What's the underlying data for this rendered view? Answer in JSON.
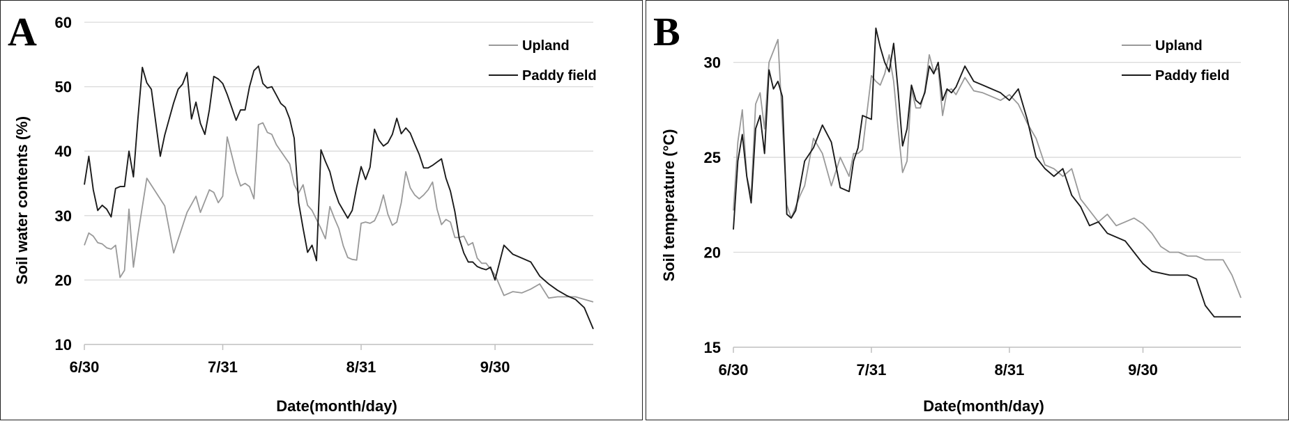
{
  "chart_data": [
    {
      "panel_label": "A",
      "type": "line",
      "ylabel": "Soil water contents (%)",
      "xlabel": "Date(month/day)",
      "ylim": [
        10,
        60
      ],
      "yticks": [
        10,
        20,
        30,
        40,
        50,
        60
      ],
      "xlim": [
        "6/30",
        "10/22"
      ],
      "xtick_labels": [
        "6/30",
        "7/31",
        "8/31",
        "9/30"
      ],
      "xtick_dates": [
        "2000-06-30",
        "2000-07-31",
        "2000-08-31",
        "2000-09-30"
      ],
      "grid": true,
      "legend_position": "top-right",
      "colors": {
        "Upland": "#999999",
        "Paddy field": "#1a1a1a"
      },
      "series": [
        {
          "name": "Upland",
          "x": [
            "2000-06-30",
            "2000-07-01",
            "2000-07-02",
            "2000-07-03",
            "2000-07-04",
            "2000-07-05",
            "2000-07-06",
            "2000-07-07",
            "2000-07-08",
            "2000-07-09",
            "2000-07-10",
            "2000-07-11",
            "2000-07-12",
            "2000-07-14",
            "2000-07-18",
            "2000-07-20",
            "2000-07-23",
            "2000-07-25",
            "2000-07-26",
            "2000-07-28",
            "2000-07-29",
            "2000-07-30",
            "2000-07-31",
            "2000-08-01",
            "2000-08-03",
            "2000-08-04",
            "2000-08-05",
            "2000-08-06",
            "2000-08-07",
            "2000-08-08",
            "2000-08-09",
            "2000-08-10",
            "2000-08-11",
            "2000-08-12",
            "2000-08-13",
            "2000-08-14",
            "2000-08-15",
            "2000-08-16",
            "2000-08-17",
            "2000-08-18",
            "2000-08-19",
            "2000-08-20",
            "2000-08-21",
            "2000-08-22",
            "2000-08-23",
            "2000-08-24",
            "2000-08-25",
            "2000-08-26",
            "2000-08-27",
            "2000-08-28",
            "2000-08-29",
            "2000-08-30",
            "2000-08-31",
            "2000-09-01",
            "2000-09-02",
            "2000-09-03",
            "2000-09-04",
            "2000-09-05",
            "2000-09-06",
            "2000-09-07",
            "2000-09-08",
            "2000-09-09",
            "2000-09-10",
            "2000-09-11",
            "2000-09-12",
            "2000-09-13",
            "2000-09-14",
            "2000-09-15",
            "2000-09-16",
            "2000-09-17",
            "2000-09-18",
            "2000-09-19",
            "2000-09-20",
            "2000-09-21",
            "2000-09-22",
            "2000-09-23",
            "2000-09-24",
            "2000-09-25",
            "2000-09-26",
            "2000-09-27",
            "2000-09-28",
            "2000-09-30",
            "2000-10-02",
            "2000-10-04",
            "2000-10-06",
            "2000-10-08",
            "2000-10-10",
            "2000-10-12",
            "2000-10-14",
            "2000-10-16",
            "2000-10-18",
            "2000-10-20",
            "2000-10-22"
          ],
          "values": [
            25.4,
            27.3,
            26.8,
            25.8,
            25.6,
            25.0,
            24.8,
            25.4,
            20.4,
            21.5,
            31.0,
            22.0,
            27.0,
            35.8,
            31.5,
            24.2,
            30.5,
            33.0,
            30.5,
            34.0,
            33.6,
            32.0,
            33.0,
            42.2,
            36.7,
            34.6,
            35.0,
            34.5,
            32.6,
            44.1,
            44.4,
            42.9,
            42.6,
            41.0,
            40.0,
            39.0,
            38.0,
            34.8,
            33.5,
            34.8,
            31.6,
            30.8,
            29.4,
            28.0,
            26.4,
            31.4,
            29.6,
            28.0,
            25.3,
            23.5,
            23.2,
            23.1,
            28.8,
            29.0,
            28.8,
            29.2,
            30.7,
            33.2,
            30.2,
            28.5,
            29.0,
            32.0,
            36.8,
            34.3,
            33.2,
            32.6,
            33.2,
            34.0,
            35.2,
            31.0,
            28.6,
            29.4,
            29.0,
            26.6,
            26.6,
            26.8,
            25.4,
            25.8,
            23.4,
            22.6,
            22.6,
            20.8,
            17.6,
            18.2,
            18.0,
            18.6,
            19.4,
            17.2,
            17.4,
            17.4,
            17.4,
            17.0,
            16.6
          ]
        },
        {
          "name": "Paddy field",
          "x": [
            "2000-06-30",
            "2000-07-01",
            "2000-07-02",
            "2000-07-03",
            "2000-07-04",
            "2000-07-05",
            "2000-07-06",
            "2000-07-07",
            "2000-07-08",
            "2000-07-09",
            "2000-07-10",
            "2000-07-11",
            "2000-07-12",
            "2000-07-13",
            "2000-07-14",
            "2000-07-15",
            "2000-07-17",
            "2000-07-18",
            "2000-07-19",
            "2000-07-20",
            "2000-07-21",
            "2000-07-22",
            "2000-07-23",
            "2000-07-24",
            "2000-07-25",
            "2000-07-26",
            "2000-07-27",
            "2000-07-28",
            "2000-07-29",
            "2000-07-30",
            "2000-07-31",
            "2000-08-01",
            "2000-08-02",
            "2000-08-03",
            "2000-08-04",
            "2000-08-05",
            "2000-08-06",
            "2000-08-07",
            "2000-08-08",
            "2000-08-09",
            "2000-08-10",
            "2000-08-11",
            "2000-08-12",
            "2000-08-13",
            "2000-08-14",
            "2000-08-15",
            "2000-08-16",
            "2000-08-17",
            "2000-08-18",
            "2000-08-19",
            "2000-08-20",
            "2000-08-21",
            "2000-08-22",
            "2000-08-23",
            "2000-08-24",
            "2000-08-25",
            "2000-08-26",
            "2000-08-27",
            "2000-08-28",
            "2000-08-29",
            "2000-08-30",
            "2000-08-31",
            "2000-09-01",
            "2000-09-02",
            "2000-09-03",
            "2000-09-04",
            "2000-09-05",
            "2000-09-06",
            "2000-09-07",
            "2000-09-08",
            "2000-09-09",
            "2000-09-10",
            "2000-09-11",
            "2000-09-12",
            "2000-09-13",
            "2000-09-14",
            "2000-09-15",
            "2000-09-16",
            "2000-09-17",
            "2000-09-18",
            "2000-09-19",
            "2000-09-20",
            "2000-09-21",
            "2000-09-22",
            "2000-09-23",
            "2000-09-24",
            "2000-09-25",
            "2000-09-26",
            "2000-09-27",
            "2000-09-28",
            "2000-09-29",
            "2000-09-30",
            "2000-10-02",
            "2000-10-04",
            "2000-10-06",
            "2000-10-08",
            "2000-10-10",
            "2000-10-12",
            "2000-10-14",
            "2000-10-16",
            "2000-10-18",
            "2000-10-20",
            "2000-10-22"
          ],
          "values": [
            34.8,
            39.2,
            34.0,
            30.8,
            31.6,
            31.0,
            29.8,
            34.2,
            34.5,
            34.5,
            40.0,
            36.0,
            45.0,
            53.0,
            50.6,
            49.6,
            39.2,
            42.5,
            45.0,
            47.5,
            49.6,
            50.4,
            52.2,
            45.0,
            47.6,
            44.3,
            42.6,
            46.4,
            51.6,
            51.2,
            50.5,
            48.8,
            46.8,
            44.8,
            46.4,
            46.4,
            50.0,
            52.5,
            53.2,
            50.5,
            49.8,
            50.0,
            48.7,
            47.4,
            46.8,
            45.0,
            42.0,
            32.0,
            28.0,
            24.3,
            25.4,
            23.0,
            40.2,
            38.4,
            36.8,
            34.0,
            32.0,
            30.8,
            29.6,
            30.8,
            34.4,
            37.6,
            35.6,
            37.5,
            43.4,
            41.7,
            40.8,
            41.3,
            42.6,
            45.1,
            42.7,
            43.6,
            42.8,
            41.1,
            39.5,
            37.4,
            37.4,
            37.8,
            38.3,
            38.8,
            35.8,
            33.8,
            30.6,
            26.4,
            24.2,
            22.8,
            22.8,
            22.1,
            21.8,
            21.6,
            22.0,
            20.0,
            25.4,
            24.0,
            23.4,
            22.8,
            20.6,
            19.4,
            18.4,
            17.6,
            17.0,
            15.7,
            12.4
          ]
        }
      ]
    },
    {
      "panel_label": "B",
      "type": "line",
      "ylabel": "Soil temperature (°C)",
      "xlabel": "Date(month/day)",
      "ylim": [
        15,
        32
      ],
      "yticks": [
        15,
        20,
        25,
        30
      ],
      "xlim": [
        "6/30",
        "10/22"
      ],
      "xtick_labels": [
        "6/30",
        "7/31",
        "8/31",
        "9/30"
      ],
      "xtick_dates": [
        "2000-06-30",
        "2000-07-31",
        "2000-08-31",
        "2000-09-30"
      ],
      "grid": true,
      "legend_position": "top-right",
      "colors": {
        "Upland": "#999999",
        "Paddy field": "#1a1a1a"
      },
      "series": [
        {
          "name": "Upland",
          "x": [
            "2000-06-30",
            "2000-07-01",
            "2000-07-02",
            "2000-07-03",
            "2000-07-04",
            "2000-07-05",
            "2000-07-06",
            "2000-07-07",
            "2000-07-08",
            "2000-07-10",
            "2000-07-12",
            "2000-07-13",
            "2000-07-14",
            "2000-07-15",
            "2000-07-16",
            "2000-07-18",
            "2000-07-20",
            "2000-07-22",
            "2000-07-24",
            "2000-07-26",
            "2000-07-27",
            "2000-07-28",
            "2000-07-29",
            "2000-07-31",
            "2000-08-01",
            "2000-08-02",
            "2000-08-03",
            "2000-08-04",
            "2000-08-05",
            "2000-08-06",
            "2000-08-07",
            "2000-08-08",
            "2000-08-09",
            "2000-08-10",
            "2000-08-11",
            "2000-08-12",
            "2000-08-13",
            "2000-08-14",
            "2000-08-15",
            "2000-08-16",
            "2000-08-17",
            "2000-08-18",
            "2000-08-19",
            "2000-08-21",
            "2000-08-23",
            "2000-08-25",
            "2000-08-27",
            "2000-08-29",
            "2000-08-31",
            "2000-09-02",
            "2000-09-04",
            "2000-09-06",
            "2000-09-08",
            "2000-09-10",
            "2000-09-12",
            "2000-09-14",
            "2000-09-16",
            "2000-09-18",
            "2000-09-20",
            "2000-09-22",
            "2000-09-24",
            "2000-09-26",
            "2000-09-28",
            "2000-09-30",
            "2000-10-02",
            "2000-10-04",
            "2000-10-06",
            "2000-10-08",
            "2000-10-10",
            "2000-10-12",
            "2000-10-14",
            "2000-10-16",
            "2000-10-18",
            "2000-10-20",
            "2000-10-22"
          ],
          "values": [
            22.2,
            25.8,
            27.5,
            24.0,
            23.0,
            27.8,
            28.4,
            26.5,
            30.0,
            31.2,
            22.5,
            21.8,
            22.4,
            23.0,
            23.5,
            26.0,
            25.2,
            23.5,
            25.0,
            24.0,
            25.2,
            25.2,
            25.4,
            29.3,
            29.0,
            28.8,
            29.4,
            30.4,
            29.0,
            26.5,
            24.2,
            24.8,
            28.6,
            27.6,
            27.6,
            28.5,
            30.4,
            29.5,
            29.7,
            27.2,
            28.5,
            28.6,
            28.3,
            29.2,
            28.5,
            28.4,
            28.2,
            28.0,
            28.3,
            27.8,
            26.8,
            26.0,
            24.6,
            24.4,
            24.0,
            24.4,
            22.8,
            22.2,
            21.6,
            22.0,
            21.4,
            21.6,
            21.8,
            21.5,
            21.0,
            20.3,
            20.0,
            20.0,
            19.8,
            19.8,
            19.6,
            19.6,
            19.6,
            18.8,
            17.6
          ]
        },
        {
          "name": "Paddy field",
          "x": [
            "2000-06-30",
            "2000-07-01",
            "2000-07-02",
            "2000-07-03",
            "2000-07-04",
            "2000-07-05",
            "2000-07-06",
            "2000-07-07",
            "2000-07-08",
            "2000-07-09",
            "2000-07-10",
            "2000-07-11",
            "2000-07-12",
            "2000-07-13",
            "2000-07-14",
            "2000-07-15",
            "2000-07-16",
            "2000-07-18",
            "2000-07-20",
            "2000-07-22",
            "2000-07-24",
            "2000-07-26",
            "2000-07-27",
            "2000-07-28",
            "2000-07-29",
            "2000-07-31",
            "2000-08-01",
            "2000-08-02",
            "2000-08-03",
            "2000-08-04",
            "2000-08-05",
            "2000-08-06",
            "2000-08-07",
            "2000-08-08",
            "2000-08-09",
            "2000-08-10",
            "2000-08-11",
            "2000-08-12",
            "2000-08-13",
            "2000-08-14",
            "2000-08-15",
            "2000-08-16",
            "2000-08-17",
            "2000-08-18",
            "2000-08-19",
            "2000-08-21",
            "2000-08-23",
            "2000-08-25",
            "2000-08-27",
            "2000-08-29",
            "2000-08-31",
            "2000-09-02",
            "2000-09-04",
            "2000-09-06",
            "2000-09-08",
            "2000-09-10",
            "2000-09-12",
            "2000-09-14",
            "2000-09-16",
            "2000-09-18",
            "2000-09-20",
            "2000-09-22",
            "2000-09-24",
            "2000-09-26",
            "2000-09-28",
            "2000-09-30",
            "2000-10-02",
            "2000-10-04",
            "2000-10-06",
            "2000-10-08",
            "2000-10-10",
            "2000-10-12",
            "2000-10-14",
            "2000-10-16",
            "2000-10-18",
            "2000-10-20",
            "2000-10-22"
          ],
          "values": [
            21.2,
            24.8,
            26.2,
            24.0,
            22.6,
            26.5,
            27.2,
            25.2,
            29.6,
            28.6,
            29.0,
            28.2,
            22.0,
            21.8,
            22.2,
            23.5,
            24.8,
            25.5,
            26.7,
            25.8,
            23.4,
            23.2,
            24.8,
            25.5,
            27.2,
            27.0,
            31.8,
            30.8,
            30.0,
            29.5,
            31.0,
            28.5,
            25.6,
            26.5,
            28.8,
            28.0,
            27.8,
            28.4,
            29.8,
            29.4,
            30.0,
            28.0,
            28.6,
            28.4,
            28.7,
            29.8,
            29.0,
            28.8,
            28.6,
            28.4,
            28.0,
            28.6,
            27.0,
            25.0,
            24.4,
            24.0,
            24.4,
            23.0,
            22.4,
            21.4,
            21.6,
            21.0,
            20.8,
            20.6,
            20.0,
            19.4,
            19.0,
            18.9,
            18.8,
            18.8,
            18.8,
            18.6,
            17.2,
            16.6,
            16.6,
            16.6,
            16.6
          ]
        }
      ]
    }
  ]
}
